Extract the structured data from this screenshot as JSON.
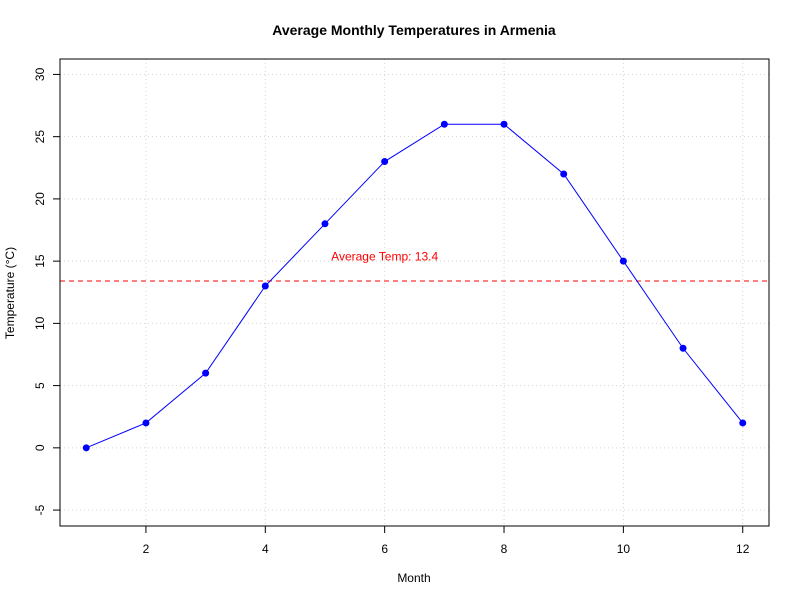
{
  "chart_data": {
    "type": "line",
    "title": "Average Monthly Temperatures in Armenia",
    "xlabel": "Month",
    "ylabel": "Temperature (°C)",
    "xlim": [
      0.56,
      12.44
    ],
    "ylim": [
      -6.28,
      31.24
    ],
    "x_ticks": [
      2,
      4,
      6,
      8,
      10,
      12
    ],
    "y_ticks": [
      -5,
      0,
      5,
      10,
      15,
      20,
      25,
      30
    ],
    "grid": true,
    "x": [
      1,
      2,
      3,
      4,
      5,
      6,
      7,
      8,
      9,
      10,
      11,
      12
    ],
    "series": [
      {
        "values": [
          0,
          2,
          6,
          13,
          18,
          23,
          26,
          26,
          22,
          15,
          8,
          2
        ],
        "color": "#0000ff"
      }
    ],
    "reference_line": {
      "y": 13.4,
      "color": "#ff0000",
      "style": "dashed"
    },
    "annotation": {
      "text": "Average Temp: 13.4",
      "x": 6,
      "y": 15.3,
      "color": "#ff0000"
    }
  }
}
